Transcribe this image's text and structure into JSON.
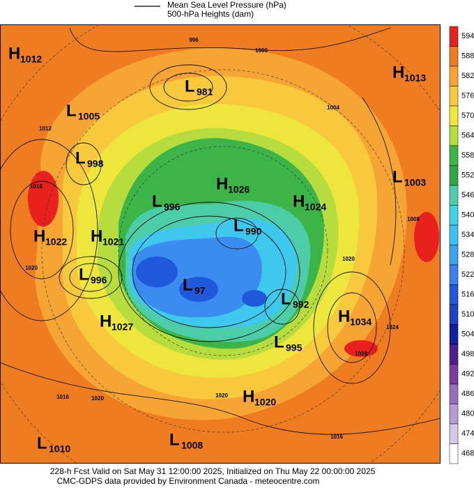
{
  "header": {
    "legend_line_1": "Mean Sea Level Pressure (hPa)",
    "legend_line_2": "500-hPa Heights (dam)"
  },
  "centers": [
    {
      "letter": "H",
      "value": "1012"
    },
    {
      "letter": "L",
      "value": "1005"
    },
    {
      "letter": "L",
      "value": "981"
    },
    {
      "letter": "L",
      "value": "998"
    },
    {
      "letter": "H",
      "value": "1013"
    },
    {
      "letter": "L",
      "value": "1003"
    },
    {
      "letter": "H",
      "value": "1026"
    },
    {
      "letter": "L",
      "value": "996"
    },
    {
      "letter": "H",
      "value": "1024"
    },
    {
      "letter": "H",
      "value": "1022"
    },
    {
      "letter": "H",
      "value": "1021"
    },
    {
      "letter": "L",
      "value": "990"
    },
    {
      "letter": "L",
      "value": "996"
    },
    {
      "letter": "L",
      "value": "97"
    },
    {
      "letter": "L",
      "value": "992"
    },
    {
      "letter": "H",
      "value": "1034"
    },
    {
      "letter": "H",
      "value": "1027"
    },
    {
      "letter": "L",
      "value": "995"
    },
    {
      "letter": "H",
      "value": "1020"
    },
    {
      "letter": "L",
      "value": "1010"
    },
    {
      "letter": "L",
      "value": "1008"
    }
  ],
  "isobar_labels": [
    "996",
    "1000",
    "1004",
    "1012",
    "1016",
    "1020",
    "1020",
    "1024",
    "1028",
    "1008",
    "1016",
    "1020",
    "1016",
    "1020"
  ],
  "colorbar": [
    "594",
    "588",
    "582",
    "576",
    "570",
    "564",
    "558",
    "552",
    "546",
    "540",
    "534",
    "528",
    "522",
    "516",
    "510",
    "504",
    "498",
    "492",
    "486",
    "480",
    "474",
    "468"
  ],
  "footer": {
    "line_1": "228-h Fcst Valid on Sat May 31 12:00:00 2025, Initialized on Thu May 22 00:00:00 2025",
    "line_2": "CMC-GDPS data provided by Environment Canada - meteocentre.com"
  }
}
